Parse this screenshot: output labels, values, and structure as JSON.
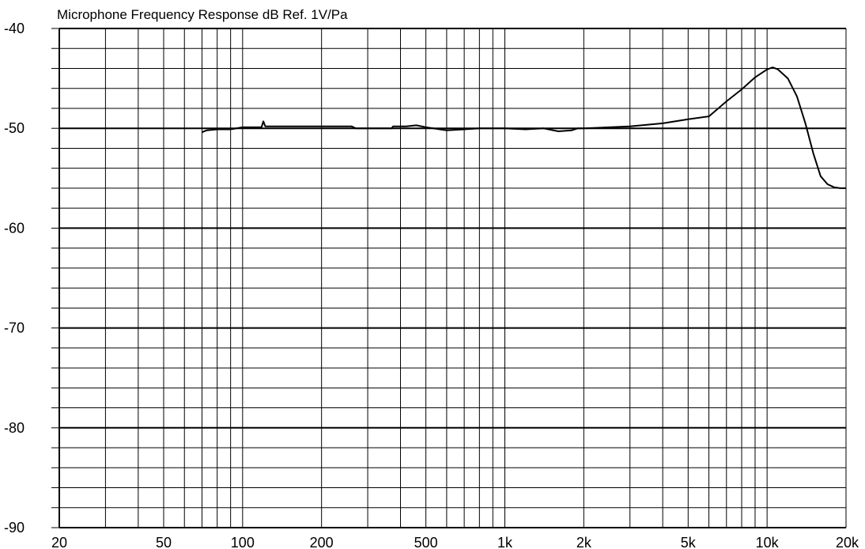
{
  "chart_data": {
    "type": "line",
    "title": "Microphone Frequency Response dB Ref. 1V/Pa",
    "xlabel": "",
    "ylabel": "",
    "x_scale": "log",
    "xlim": [
      20,
      20000
    ],
    "ylim": [
      -90,
      -40
    ],
    "grid": true,
    "x_ticks": [
      {
        "value": 20,
        "label": "20"
      },
      {
        "value": 50,
        "label": "50"
      },
      {
        "value": 100,
        "label": "100"
      },
      {
        "value": 200,
        "label": "200"
      },
      {
        "value": 500,
        "label": "500"
      },
      {
        "value": 1000,
        "label": "1k"
      },
      {
        "value": 2000,
        "label": "2k"
      },
      {
        "value": 5000,
        "label": "5k"
      },
      {
        "value": 10000,
        "label": "10k"
      },
      {
        "value": 20000,
        "label": "20k"
      }
    ],
    "y_ticks": [
      {
        "value": -40,
        "label": "-40"
      },
      {
        "value": -50,
        "label": "-50"
      },
      {
        "value": -60,
        "label": "-60"
      },
      {
        "value": -70,
        "label": "-70"
      },
      {
        "value": -80,
        "label": "-80"
      },
      {
        "value": -90,
        "label": "-90"
      }
    ],
    "series": [
      {
        "color": "#000000",
        "points": [
          [
            70,
            -50.4
          ],
          [
            73,
            -50.2
          ],
          [
            80,
            -50.1
          ],
          [
            90,
            -50.1
          ],
          [
            100,
            -49.9
          ],
          [
            110,
            -49.9
          ],
          [
            118,
            -49.9
          ],
          [
            120,
            -49.3
          ],
          [
            122,
            -49.8
          ],
          [
            150,
            -49.8
          ],
          [
            200,
            -49.8
          ],
          [
            260,
            -49.8
          ],
          [
            270,
            -50.0
          ],
          [
            300,
            -50.0
          ],
          [
            370,
            -50.0
          ],
          [
            375,
            -49.8
          ],
          [
            420,
            -49.8
          ],
          [
            460,
            -49.7
          ],
          [
            500,
            -49.9
          ],
          [
            600,
            -50.2
          ],
          [
            700,
            -50.1
          ],
          [
            800,
            -50.0
          ],
          [
            1000,
            -50.0
          ],
          [
            1200,
            -50.1
          ],
          [
            1400,
            -50.0
          ],
          [
            1600,
            -50.3
          ],
          [
            1800,
            -50.2
          ],
          [
            1900,
            -50.0
          ],
          [
            2000,
            -50.0
          ],
          [
            2500,
            -49.9
          ],
          [
            3000,
            -49.8
          ],
          [
            4000,
            -49.5
          ],
          [
            5000,
            -49.1
          ],
          [
            6000,
            -48.8
          ],
          [
            7000,
            -47.3
          ],
          [
            8000,
            -46.1
          ],
          [
            9000,
            -44.9
          ],
          [
            10000,
            -44.1
          ],
          [
            10500,
            -43.9
          ],
          [
            11000,
            -44.1
          ],
          [
            12000,
            -45.0
          ],
          [
            13000,
            -46.8
          ],
          [
            14000,
            -49.5
          ],
          [
            15000,
            -52.5
          ],
          [
            16000,
            -54.8
          ],
          [
            17000,
            -55.6
          ],
          [
            18000,
            -55.9
          ],
          [
            19000,
            -56.0
          ],
          [
            20000,
            -56.0
          ]
        ]
      }
    ]
  }
}
